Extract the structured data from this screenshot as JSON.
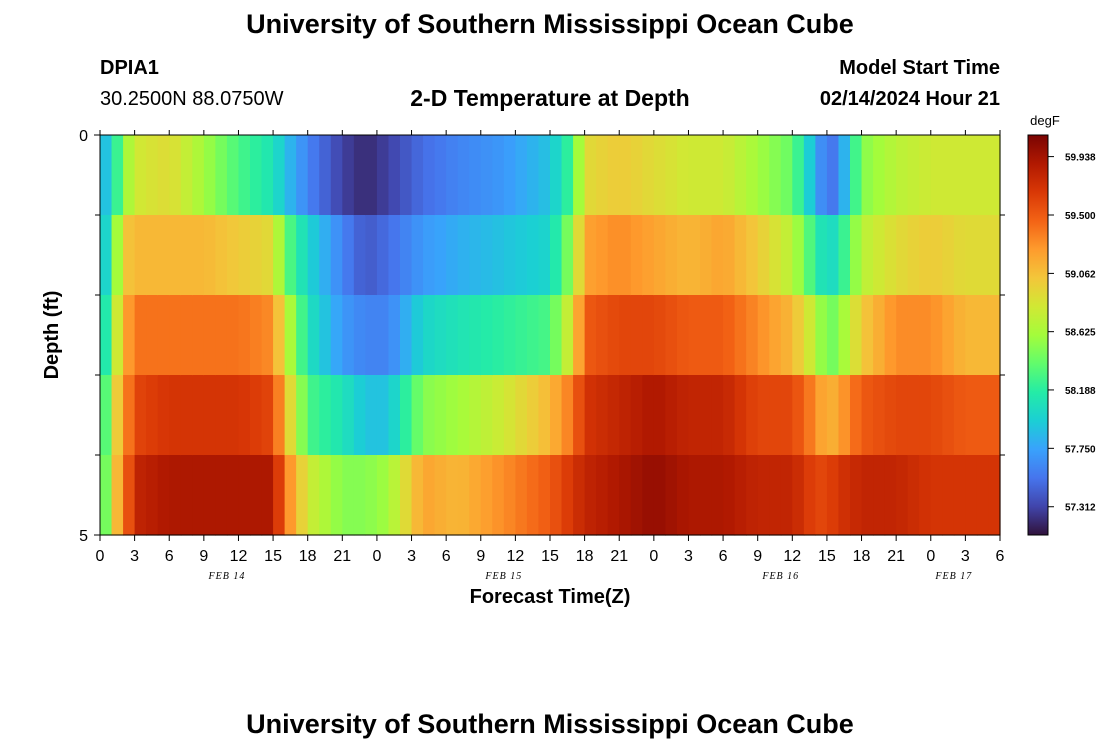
{
  "header": {
    "title": "University of Southern Mississippi Ocean Cube",
    "station_id": "DPIA1",
    "station_coords": "30.2500N  88.0750W",
    "plot_title": "2-D Temperature at Depth",
    "model_start_label": "Model Start Time",
    "model_start_value": "02/14/2024 Hour 21",
    "footer_title": "University of Southern Mississippi Ocean Cube"
  },
  "chart_data": {
    "type": "heatmap",
    "title": "2-D Temperature at Depth",
    "xlabel": "Forecast Time(Z)",
    "ylabel": "Depth (ft)",
    "x_unit": "hours since FEB 14 00Z",
    "x_range": [
      0,
      78
    ],
    "x_ticks": [
      0,
      3,
      6,
      9,
      12,
      15,
      18,
      21,
      24,
      27,
      30,
      33,
      36,
      39,
      42,
      45,
      48,
      51,
      54,
      57,
      60,
      63,
      66,
      69,
      72,
      75,
      78
    ],
    "x_tick_labels": [
      "0",
      "3",
      "6",
      "9",
      "12",
      "15",
      "18",
      "21",
      "0",
      "3",
      "6",
      "9",
      "12",
      "15",
      "18",
      "21",
      "0",
      "3",
      "6",
      "9",
      "12",
      "15",
      "18",
      "21",
      "0",
      "3",
      "6"
    ],
    "date_labels": [
      {
        "text": "FEB 14",
        "x": 11
      },
      {
        "text": "FEB 15",
        "x": 35
      },
      {
        "text": "FEB 16",
        "x": 59
      },
      {
        "text": "FEB 17",
        "x": 74
      }
    ],
    "y_range": [
      0,
      5
    ],
    "y_tick_labels": [
      {
        "value": 0,
        "label": "0"
      },
      {
        "value": 5,
        "label": "5"
      }
    ],
    "y_minor_ticks": [
      1,
      2,
      3,
      4
    ],
    "depth_bins": [
      0.5,
      1.5,
      2.5,
      3.5,
      4.5
    ],
    "colorbar": {
      "unit": "degF",
      "min": 57.1,
      "max": 60.1,
      "ticks": [
        57.312,
        57.75,
        58.188,
        58.625,
        59.062,
        59.5,
        59.938
      ],
      "tick_labels": [
        "57.312",
        "57.750",
        "58.188",
        "58.625",
        "59.062",
        "59.500",
        "59.938"
      ],
      "colors": [
        "#30123b",
        "#4145ab",
        "#4675ed",
        "#39a2fc",
        "#1bcfd4",
        "#24eca6",
        "#61fc6c",
        "#a4fc3b",
        "#d1e834",
        "#f3c63a",
        "#fe9b2d",
        "#f36315",
        "#d93806",
        "#b11901",
        "#7a0403"
      ]
    },
    "profile_times": [
      0,
      1,
      2,
      3,
      6,
      9,
      12,
      15,
      16,
      18,
      21,
      23,
      25,
      28,
      31,
      35,
      39,
      41,
      42,
      45,
      48,
      51,
      54,
      57,
      60,
      62,
      63,
      64,
      66,
      69,
      72,
      75,
      78
    ],
    "profiles": [
      [
        57.8,
        57.8,
        57.8,
        57.9,
        58.0
      ],
      [
        58.0,
        58.2,
        58.5,
        58.8,
        58.9
      ],
      [
        58.5,
        59.0,
        59.1,
        59.2,
        59.3
      ],
      [
        58.8,
        59.1,
        59.4,
        59.6,
        59.8
      ],
      [
        58.9,
        59.1,
        59.4,
        59.7,
        59.9
      ],
      [
        58.6,
        59.1,
        59.4,
        59.7,
        59.9
      ],
      [
        58.3,
        59.0,
        59.4,
        59.7,
        59.9
      ],
      [
        58.1,
        58.9,
        59.3,
        59.6,
        59.9
      ],
      [
        57.9,
        58.4,
        58.8,
        59.1,
        59.4
      ],
      [
        57.6,
        58.0,
        58.1,
        58.3,
        58.8
      ],
      [
        57.3,
        57.6,
        57.7,
        58.1,
        58.5
      ],
      [
        57.2,
        57.4,
        57.6,
        57.9,
        58.5
      ],
      [
        57.3,
        57.5,
        57.6,
        57.9,
        58.6
      ],
      [
        57.5,
        57.7,
        58.0,
        58.5,
        59.2
      ],
      [
        57.6,
        57.8,
        58.1,
        58.6,
        59.1
      ],
      [
        57.7,
        57.9,
        58.2,
        58.8,
        59.3
      ],
      [
        57.9,
        58.0,
        58.3,
        59.1,
        59.5
      ],
      [
        58.3,
        58.6,
        58.9,
        59.4,
        59.7
      ],
      [
        58.9,
        59.2,
        59.5,
        59.7,
        59.8
      ],
      [
        59.0,
        59.3,
        59.6,
        59.8,
        59.9
      ],
      [
        58.9,
        59.2,
        59.6,
        59.9,
        60.0
      ],
      [
        58.8,
        59.1,
        59.5,
        59.8,
        59.9
      ],
      [
        58.8,
        59.2,
        59.5,
        59.8,
        59.9
      ],
      [
        58.6,
        59.0,
        59.3,
        59.6,
        59.8
      ],
      [
        58.4,
        58.7,
        59.1,
        59.6,
        59.8
      ],
      [
        57.8,
        58.2,
        58.7,
        59.3,
        59.6
      ],
      [
        57.5,
        58.0,
        58.4,
        59.1,
        59.6
      ],
      [
        57.6,
        58.1,
        58.5,
        59.2,
        59.7
      ],
      [
        58.5,
        58.7,
        59.0,
        59.5,
        59.8
      ],
      [
        58.7,
        58.9,
        59.3,
        59.6,
        59.8
      ],
      [
        58.8,
        59.0,
        59.3,
        59.6,
        59.7
      ],
      [
        58.8,
        58.9,
        59.1,
        59.5,
        59.7
      ],
      [
        58.8,
        58.9,
        59.1,
        59.5,
        59.7
      ]
    ]
  }
}
